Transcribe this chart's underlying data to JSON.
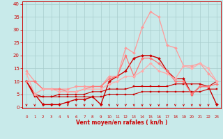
{
  "xlabel": "Vent moyen/en rafales ( kn/h )",
  "background_color": "#c8eaea",
  "grid_color": "#a8cccc",
  "x_ticks": [
    0,
    1,
    2,
    3,
    4,
    5,
    6,
    7,
    8,
    9,
    10,
    11,
    12,
    13,
    14,
    15,
    16,
    17,
    18,
    19,
    20,
    21,
    22,
    23
  ],
  "ylim": [
    -0.5,
    41
  ],
  "xlim": [
    -0.5,
    23.5
  ],
  "yticks": [
    0,
    5,
    10,
    15,
    20,
    25,
    30,
    35,
    40
  ],
  "series": [
    {
      "x": [
        0,
        1,
        2,
        3,
        4,
        5,
        6,
        7,
        8,
        9,
        10,
        11,
        12,
        13,
        14,
        15,
        16,
        17,
        18,
        19,
        20,
        21,
        22,
        23
      ],
      "y": [
        10,
        5,
        4,
        4,
        4,
        4,
        4,
        4,
        4,
        4,
        5,
        5,
        5,
        5,
        6,
        6,
        6,
        6,
        6,
        6,
        6,
        6,
        7,
        7
      ],
      "color": "#cc0000",
      "lw": 0.8,
      "marker": "s",
      "ms": 1.5
    },
    {
      "x": [
        0,
        1,
        2,
        3,
        4,
        5,
        6,
        7,
        8,
        9,
        10,
        11,
        12,
        13,
        14,
        15,
        16,
        17,
        18,
        19,
        20,
        21,
        22,
        23
      ],
      "y": [
        10,
        4,
        4,
        4,
        5,
        5,
        5,
        5,
        6,
        6,
        7,
        7,
        7,
        8,
        8,
        8,
        8,
        8,
        9,
        9,
        9,
        9,
        8,
        10
      ],
      "color": "#cc0000",
      "lw": 0.8,
      "marker": "s",
      "ms": 1.5
    },
    {
      "x": [
        0,
        1,
        2,
        3,
        4,
        5,
        6,
        7,
        8,
        9,
        10,
        11,
        12,
        13,
        14,
        15,
        16,
        17,
        18,
        19,
        20,
        21,
        22,
        23
      ],
      "y": [
        10,
        5,
        1,
        1,
        1,
        2,
        3,
        3,
        4,
        1,
        10,
        12,
        14,
        19,
        20,
        20,
        19,
        14,
        11,
        11,
        5,
        8,
        8,
        1
      ],
      "color": "#cc0000",
      "lw": 1.0,
      "marker": "D",
      "ms": 2.0
    },
    {
      "x": [
        0,
        1,
        2,
        3,
        4,
        5,
        6,
        7,
        8,
        9,
        10,
        11,
        12,
        13,
        14,
        15,
        16,
        17,
        18,
        19,
        20,
        21,
        22,
        23
      ],
      "y": [
        14,
        10,
        7,
        7,
        7,
        7,
        8,
        8,
        8,
        8,
        12,
        12,
        23,
        21,
        31,
        37,
        35,
        24,
        23,
        16,
        16,
        17,
        13,
        10
      ],
      "color": "#ff9999",
      "lw": 0.9,
      "marker": "D",
      "ms": 2.0
    },
    {
      "x": [
        0,
        1,
        2,
        3,
        4,
        5,
        6,
        7,
        8,
        9,
        10,
        11,
        12,
        13,
        14,
        15,
        16,
        17,
        18,
        19,
        20,
        21,
        22,
        23
      ],
      "y": [
        10,
        10,
        7,
        7,
        7,
        6,
        6,
        7,
        8,
        8,
        11,
        12,
        20,
        12,
        19,
        19,
        17,
        14,
        10,
        10,
        5,
        8,
        8,
        9
      ],
      "color": "#ff7777",
      "lw": 0.9,
      "marker": "D",
      "ms": 2.0
    },
    {
      "x": [
        0,
        1,
        2,
        3,
        4,
        5,
        6,
        7,
        8,
        9,
        10,
        11,
        12,
        13,
        14,
        15,
        16,
        17,
        18,
        19,
        20,
        21,
        22,
        23
      ],
      "y": [
        13,
        5,
        7,
        7,
        6,
        6,
        6,
        7,
        7,
        7,
        9,
        10,
        12,
        12,
        14,
        17,
        14,
        13,
        11,
        16,
        15,
        17,
        15,
        10
      ],
      "color": "#ffaaaa",
      "lw": 0.9,
      "marker": "D",
      "ms": 2.0
    }
  ],
  "arrow_color": "#cc0000",
  "tick_color": "#cc0000",
  "label_color": "#cc0000"
}
